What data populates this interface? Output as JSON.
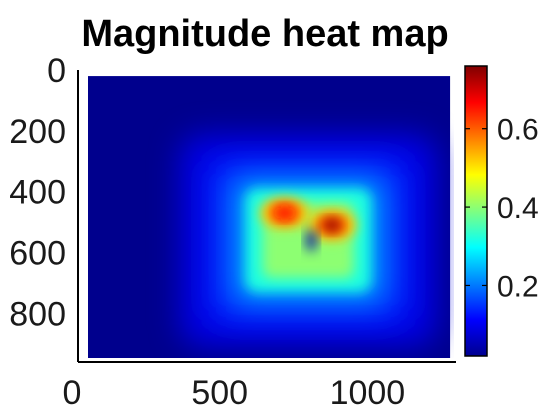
{
  "chart_data": {
    "type": "heatmap",
    "title": "Magnitude heat map",
    "xlabel": "",
    "ylabel": "",
    "x_ticks": [
      0,
      500,
      1000
    ],
    "y_ticks": [
      0,
      200,
      400,
      600,
      800
    ],
    "xlim": [
      0,
      1300
    ],
    "ylim": [
      0,
      960
    ],
    "y_reversed": true,
    "data_extent": {
      "x": [
        30,
        1280
      ],
      "y": [
        20,
        960
      ]
    },
    "background_value": 0.03,
    "colorbar": {
      "colormap": "jet",
      "range": [
        0.02,
        0.76
      ],
      "ticks": [
        0.2,
        0.4,
        0.6
      ],
      "tick_labels": [
        "0.2",
        "0.4",
        "0.6"
      ]
    },
    "regions": [
      {
        "name": "central-plateau",
        "x_range": [
          550,
          1050
        ],
        "y_range": [
          360,
          760
        ],
        "value": 0.32
      },
      {
        "name": "left-lobe-peak",
        "x": 720,
        "y": 470,
        "value": 0.65
      },
      {
        "name": "right-lobe-peak",
        "x": 880,
        "y": 510,
        "value": 0.76
      },
      {
        "name": "center-dip",
        "x": 810,
        "y": 560,
        "value": 0.05
      }
    ]
  }
}
